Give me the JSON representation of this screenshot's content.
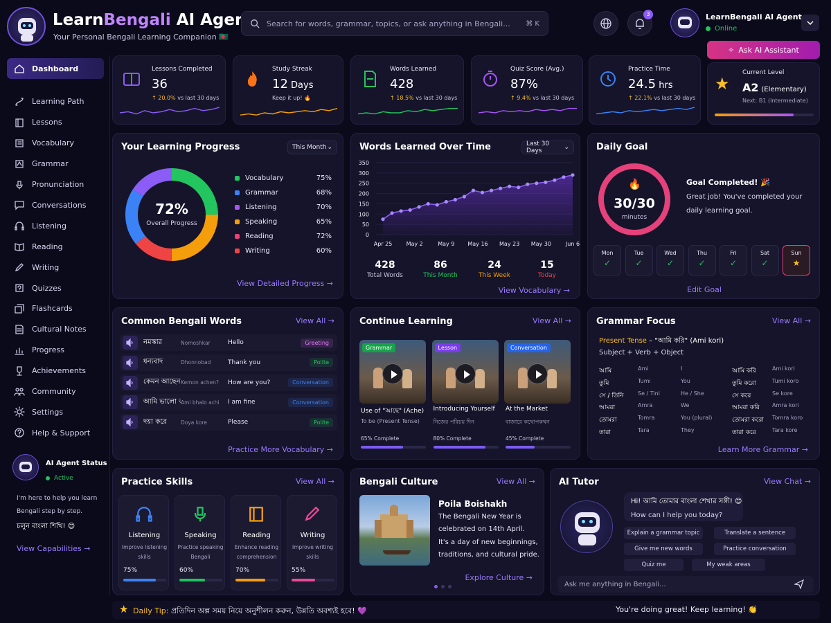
{
  "app": {
    "title_prefix": "Learn",
    "title_accent": "Bengali",
    "title_suffix": " AI Agent",
    "subtitle": "Your Personal Bengali Learning Companion 🇧🇩"
  },
  "search": {
    "placeholder": "Search for words, grammar, topics, or ask anything in Bengali...",
    "shortcut": "⌘ K"
  },
  "header": {
    "notif_count": "3",
    "user_name": "LearnBengali AI Agent",
    "user_status": "Online",
    "ask_button": "Ask AI Assistant"
  },
  "sidebar": {
    "items": [
      {
        "label": "Dashboard",
        "icon": "home-icon"
      },
      {
        "label": "Learning Path",
        "icon": "path-icon"
      },
      {
        "label": "Lessons",
        "icon": "book-icon"
      },
      {
        "label": "Vocabulary",
        "icon": "list-icon"
      },
      {
        "label": "Grammar",
        "icon": "grammar-icon"
      },
      {
        "label": "Pronunciation",
        "icon": "mic-icon"
      },
      {
        "label": "Conversations",
        "icon": "chat-icon"
      },
      {
        "label": "Listening",
        "icon": "headphones-icon"
      },
      {
        "label": "Reading",
        "icon": "reading-icon"
      },
      {
        "label": "Writing",
        "icon": "pen-icon"
      },
      {
        "label": "Quizzes",
        "icon": "quiz-icon"
      },
      {
        "label": "Flashcards",
        "icon": "cards-icon"
      },
      {
        "label": "Cultural Notes",
        "icon": "notes-icon"
      },
      {
        "label": "Progress",
        "icon": "chart-icon"
      },
      {
        "label": "Achievements",
        "icon": "trophy-icon"
      },
      {
        "label": "Community",
        "icon": "community-icon"
      },
      {
        "label": "Settings",
        "icon": "gear-icon"
      },
      {
        "label": "Help & Support",
        "icon": "help-icon"
      }
    ],
    "agent_title": "AI Agent Status",
    "agent_status": "Active",
    "agent_text1": "I'm here to help you learn",
    "agent_text2": "Bengali step by step.",
    "agent_text3": "চলুন বাংলা শিখি! 😊",
    "agent_link": "View Capabilities →"
  },
  "stats": [
    {
      "label": "Lessons Completed",
      "value": "36",
      "unit": "",
      "change": "↑ 20.0%",
      "note": " vs last 30 days",
      "color": "#8b5cf6"
    },
    {
      "label": "Study Streak",
      "value": "12",
      "unit": " Days",
      "change": "",
      "note": "Keep it up! 🔥",
      "color": "#f59e0b"
    },
    {
      "label": "Words Learned",
      "value": "428",
      "unit": "",
      "change": "↑ 18.5%",
      "note": " vs last 30 days",
      "color": "#22c55e"
    },
    {
      "label": "Quiz Score (Avg.)",
      "value": "87%",
      "unit": "",
      "change": "↑ 9.4%",
      "note": " vs last 30 days",
      "color": "#a855f7"
    },
    {
      "label": "Practice Time",
      "value": "24.5",
      "unit": " hrs",
      "change": "↑ 22.1%",
      "note": " vs last 30 days",
      "color": "#3b82f6"
    }
  ],
  "level": {
    "label": "Current Level",
    "value": "A2",
    "sub": "(Elementary)",
    "next": "Next: B1 (Intermediate)",
    "progress": 0.8
  },
  "progress_card": {
    "title": "Your Learning Progress",
    "filter": "This Month",
    "overall": "72%",
    "overall_label": "Overall Progress",
    "link": "View Detailed Progress →",
    "items": [
      {
        "name": "Vocabulary",
        "pct": "75%",
        "color": "#22c55e"
      },
      {
        "name": "Grammar",
        "pct": "68%",
        "color": "#3b82f6"
      },
      {
        "name": "Listening",
        "pct": "70%",
        "color": "#a855f7"
      },
      {
        "name": "Speaking",
        "pct": "65%",
        "color": "#f59e0b"
      },
      {
        "name": "Reading",
        "pct": "72%",
        "color": "#e6417a"
      },
      {
        "name": "Writing",
        "pct": "60%",
        "color": "#ef4444"
      }
    ]
  },
  "words_chart": {
    "title": "Words Learned Over Time",
    "filter": "Last 30 Days",
    "link": "View Vocabulary →",
    "summary": [
      {
        "value": "428",
        "label": "Total Words",
        "color": "#c9c6e0"
      },
      {
        "value": "86",
        "label": "This Month",
        "color": "#22c55e"
      },
      {
        "value": "24",
        "label": "This Week",
        "color": "#f59e0b"
      },
      {
        "value": "15",
        "label": "Today",
        "color": "#ef4444"
      }
    ]
  },
  "chart_data": {
    "type": "area",
    "x": [
      "Apr 25",
      "Apr 27",
      "Apr 29",
      "May 1",
      "May 3",
      "May 5",
      "May 7",
      "May 9",
      "May 11",
      "May 13",
      "May 15",
      "May 17",
      "May 19",
      "May 21",
      "May 23",
      "May 25",
      "May 27",
      "May 29",
      "May 31",
      "Jun 2",
      "Jun 4",
      "Jun 6"
    ],
    "values": [
      75,
      105,
      115,
      120,
      135,
      150,
      145,
      160,
      170,
      185,
      215,
      205,
      215,
      225,
      235,
      230,
      245,
      250,
      255,
      265,
      280,
      290
    ],
    "xticks": [
      "Apr 25",
      "May 2",
      "May 9",
      "May 16",
      "May 23",
      "May 30",
      "Jun 6"
    ],
    "yticks": [
      0,
      50,
      100,
      150,
      200,
      250,
      300,
      350
    ],
    "ylim": [
      0,
      350
    ]
  },
  "daily_goal": {
    "title": "Daily Goal",
    "value": "30/30",
    "unit": "minutes",
    "headline": "Goal Completed! 🎉",
    "text1": "Great job! You've completed your",
    "text2": "daily learning goal.",
    "link": "Edit Goal",
    "progress": 1.0,
    "days": [
      "Mon",
      "Tue",
      "Wed",
      "Thu",
      "Fri",
      "Sat",
      "Sun"
    ]
  },
  "common_words": {
    "title": "Common Bengali Words",
    "view_all": "View All →",
    "link": "Practice More Vocabulary →",
    "rows": [
      {
        "bn": "নমস্কার",
        "tr": "Nomoshkar",
        "en": "Hello",
        "tag": "Greeting",
        "tag_color": "#e879f9"
      },
      {
        "bn": "ধন্যবাদ",
        "tr": "Dhonnobad",
        "en": "Thank you",
        "tag": "Polite",
        "tag_color": "#22c55e"
      },
      {
        "bn": "কেমন আছেন?",
        "tr": "Kemon achen?",
        "en": "How are you?",
        "tag": "Conversation",
        "tag_color": "#3b82f6"
      },
      {
        "bn": "আমি ভালো আছি",
        "tr": "Ami bhalo achi",
        "en": "I am fine",
        "tag": "Conversation",
        "tag_color": "#3b82f6"
      },
      {
        "bn": "দয়া করে",
        "tr": "Doya kore",
        "en": "Please",
        "tag": "Polite",
        "tag_color": "#22c55e"
      }
    ]
  },
  "continue": {
    "title": "Continue Learning",
    "view_all": "View All →",
    "items": [
      {
        "tag": "Grammar",
        "tag_color": "#16a34a",
        "title": "Use of \"আছে\" (Ache)",
        "sub": "To be (Present Tense)",
        "done": "65% Complete",
        "pct": 0.65
      },
      {
        "tag": "Lesson",
        "tag_color": "#7c3aed",
        "title": "Introducing Yourself",
        "sub": "নিজের পরিচয় দিন",
        "done": "80% Complete",
        "pct": 0.8
      },
      {
        "tag": "Conversation",
        "tag_color": "#2563eb",
        "title": "At the Market",
        "sub": "বাজারে কথোপকথন",
        "done": "45% Complete",
        "pct": 0.45
      }
    ]
  },
  "grammar": {
    "title": "Grammar Focus",
    "view_all": "View All →",
    "heading_accent": "Present Tense",
    "heading_rest": " – \"আমি করি\" (Ami kori)",
    "formula": "Subject + Verb + Object",
    "link": "Learn More Grammar →",
    "rows": [
      [
        "আমি",
        "Ami",
        "I",
        "আমি করি",
        "Ami kori"
      ],
      [
        "তুমি",
        "Tumi",
        "You",
        "তুমি করো",
        "Tumi koro"
      ],
      [
        "সে / তিনি",
        "Se / Tini",
        "He / She",
        "সে করে",
        "Se kore"
      ],
      [
        "আমরা",
        "Amra",
        "We",
        "আমরা করি",
        "Amra kori"
      ],
      [
        "তোমরা",
        "Tomra",
        "You (plural)",
        "তোমরা করো",
        "Tomra koro"
      ],
      [
        "তারা",
        "Tara",
        "They",
        "তারা করে",
        "Tara kore"
      ]
    ]
  },
  "skills": {
    "title": "Practice Skills",
    "view_all": "View All →",
    "items": [
      {
        "name": "Listening",
        "d1": "Improve listening",
        "d2": "skills",
        "pct": "75%",
        "val": 0.75,
        "color": "#3b82f6"
      },
      {
        "name": "Speaking",
        "d1": "Practice speaking",
        "d2": "Bengali",
        "pct": "60%",
        "val": 0.6,
        "color": "#22c55e"
      },
      {
        "name": "Reading",
        "d1": "Enhance reading",
        "d2": "comprehension",
        "pct": "70%",
        "val": 0.7,
        "color": "#f59e0b"
      },
      {
        "name": "Writing",
        "d1": "Improve writing",
        "d2": "skills",
        "pct": "55%",
        "val": 0.55,
        "color": "#ec4899"
      }
    ]
  },
  "culture": {
    "title": "Bengali Culture",
    "view_all": "View All →",
    "heading": "Poila Boishakh",
    "lines": [
      "The Bengali New Year is",
      "celebrated on 14th April.",
      "It's a day of new beginnings,",
      "traditions, and cultural pride."
    ],
    "link": "Explore Culture →"
  },
  "tutor": {
    "title": "AI Tutor",
    "view_chat": "View Chat →",
    "msg1": "Hi! আমি তোমার বাংলা শেখার সঙ্গী! 😊",
    "msg2": "How can I help you today?",
    "chips": [
      "Explain a grammar topic",
      "Translate a sentence",
      "Give me new words",
      "Practice conversation",
      "Quiz me",
      "My weak areas"
    ],
    "input_placeholder": "Ask me anything in Bengali..."
  },
  "footer": {
    "tip_label": "Daily Tip:",
    "tip_text": " প্রতিদিন অল্প সময় নিয়ে অনুশীলন করুন, উন্নতি অবশ্যই হবে! 💜",
    "right": "You're doing great! Keep learning! 👏"
  }
}
